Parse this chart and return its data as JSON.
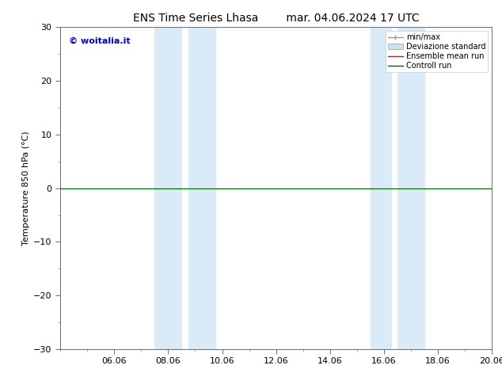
{
  "title_left": "ENS Time Series Lhasa",
  "title_right": "mar. 04.06.2024 17 UTC",
  "ylabel": "Temperature 850 hPa (°C)",
  "ylim": [
    -30,
    30
  ],
  "yticks": [
    -30,
    -20,
    -10,
    0,
    10,
    20,
    30
  ],
  "xtick_labels": [
    "06.06",
    "08.06",
    "10.06",
    "12.06",
    "14.06",
    "16.06",
    "18.06",
    "20.06"
  ],
  "xtick_positions": [
    2,
    4,
    6,
    8,
    10,
    12,
    14,
    16
  ],
  "blue_shade_regions": [
    [
      3.5,
      4.5
    ],
    [
      4.75,
      5.75
    ],
    [
      11.5,
      12.25
    ],
    [
      12.5,
      13.5
    ]
  ],
  "control_run_y": 0.0,
  "watermark_text": "© woitalia.it",
  "watermark_color": "#0000cc",
  "legend_labels": [
    "min/max",
    "Deviazione standard",
    "Ensemble mean run",
    "Controll run"
  ],
  "legend_colors_minmax": "#999999",
  "legend_color_devstd_face": "#cce0f0",
  "legend_color_devstd_edge": "#aaaaaa",
  "legend_color_ensemble": "#ff0000",
  "legend_color_control": "#006400",
  "shade_color": "#daeaf7",
  "background_color": "#ffffff",
  "title_fontsize": 10,
  "axis_label_fontsize": 8,
  "tick_fontsize": 8,
  "watermark_fontsize": 8,
  "legend_fontsize": 7
}
